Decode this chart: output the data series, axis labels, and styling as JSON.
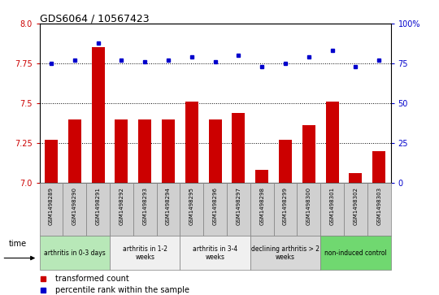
{
  "title": "GDS6064 / 10567423",
  "samples": [
    "GSM1498289",
    "GSM1498290",
    "GSM1498291",
    "GSM1498292",
    "GSM1498293",
    "GSM1498294",
    "GSM1498295",
    "GSM1498296",
    "GSM1498297",
    "GSM1498298",
    "GSM1498299",
    "GSM1498300",
    "GSM1498301",
    "GSM1498302",
    "GSM1498303"
  ],
  "red_values": [
    7.27,
    7.4,
    7.85,
    7.4,
    7.4,
    7.4,
    7.51,
    7.4,
    7.44,
    7.08,
    7.27,
    7.36,
    7.51,
    7.06,
    7.2
  ],
  "blue_values": [
    75,
    77,
    88,
    77,
    76,
    77,
    79,
    76,
    80,
    73,
    75,
    79,
    83,
    73,
    77
  ],
  "ylim_left": [
    7.0,
    8.0
  ],
  "ylim_right": [
    0,
    100
  ],
  "yticks_left": [
    7.0,
    7.25,
    7.5,
    7.75,
    8.0
  ],
  "yticks_right": [
    0,
    25,
    50,
    75,
    100
  ],
  "groups": [
    {
      "label": "arthritis in 0-3 days",
      "start": 0,
      "end": 3,
      "color": "#b8e8b8"
    },
    {
      "label": "arthritis in 1-2\nweeks",
      "start": 3,
      "end": 6,
      "color": "#f0f0f0"
    },
    {
      "label": "arthritis in 3-4\nweeks",
      "start": 6,
      "end": 9,
      "color": "#f0f0f0"
    },
    {
      "label": "declining arthritis > 2\nweeks",
      "start": 9,
      "end": 12,
      "color": "#d8d8d8"
    },
    {
      "label": "non-induced control",
      "start": 12,
      "end": 15,
      "color": "#70d870"
    }
  ],
  "bar_color": "#cc0000",
  "dot_color": "#0000cc",
  "sample_box_color": "#d0d0d0",
  "legend_red_label": "transformed count",
  "legend_blue_label": "percentile rank within the sample"
}
